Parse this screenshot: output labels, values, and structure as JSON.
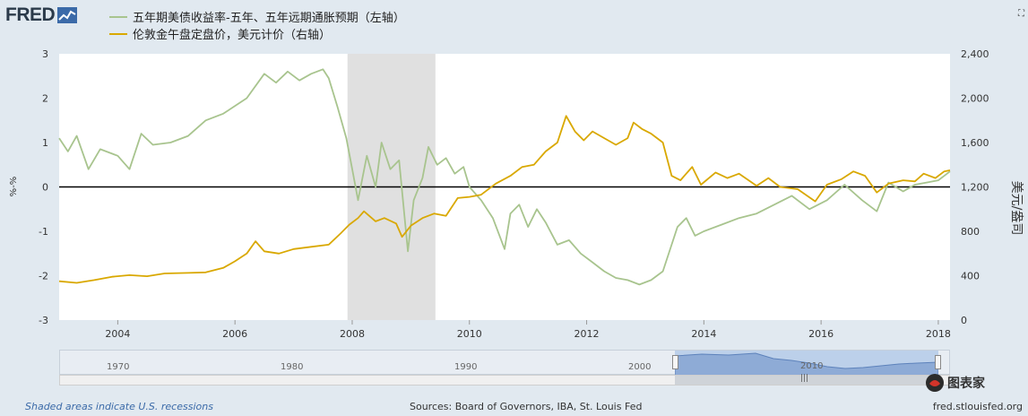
{
  "header": {
    "logo_text": "FRED",
    "legend": [
      {
        "label": "五年期美债收益率-五年、五年远期通胀预期（左轴）",
        "color": "#a8c48e"
      },
      {
        "label": "伦敦金午盘定盘价，美元计价（右轴）",
        "color": "#d9a800"
      }
    ]
  },
  "chart_data": {
    "type": "line",
    "x_ticks": [
      "2004",
      "2006",
      "2008",
      "2010",
      "2012",
      "2014",
      "2016",
      "2018"
    ],
    "x_range": [
      2003.0,
      2018.2
    ],
    "y_left": {
      "label": "%-%",
      "range": [
        -3,
        3
      ],
      "ticks": [
        "3",
        "2",
        "1",
        "0",
        "-1",
        "-2",
        "-3"
      ]
    },
    "y_right": {
      "label": "美元/盎司",
      "range": [
        0,
        2400
      ],
      "ticks": [
        "2,400",
        "2,000",
        "1,600",
        "1,200",
        "800",
        "400",
        "0"
      ]
    },
    "recession": {
      "start": 2007.92,
      "end": 2009.42,
      "color": "#e0e0e0"
    },
    "zero_line": 0,
    "series": [
      {
        "name": "五年期美债收益率-五年、五年远期通胀预期（左轴）",
        "axis": "left",
        "color": "#a8c48e",
        "points": [
          [
            2003.0,
            1.1
          ],
          [
            2003.15,
            0.8
          ],
          [
            2003.3,
            1.15
          ],
          [
            2003.5,
            0.4
          ],
          [
            2003.7,
            0.85
          ],
          [
            2004.0,
            0.7
          ],
          [
            2004.2,
            0.4
          ],
          [
            2004.4,
            1.2
          ],
          [
            2004.6,
            0.95
          ],
          [
            2004.9,
            1.0
          ],
          [
            2005.2,
            1.15
          ],
          [
            2005.5,
            1.5
          ],
          [
            2005.8,
            1.65
          ],
          [
            2006.2,
            2.0
          ],
          [
            2006.5,
            2.55
          ],
          [
            2006.7,
            2.35
          ],
          [
            2006.9,
            2.6
          ],
          [
            2007.1,
            2.4
          ],
          [
            2007.3,
            2.55
          ],
          [
            2007.5,
            2.65
          ],
          [
            2007.6,
            2.45
          ],
          [
            2007.75,
            1.8
          ],
          [
            2007.9,
            1.1
          ],
          [
            2008.0,
            0.4
          ],
          [
            2008.1,
            -0.3
          ],
          [
            2008.25,
            0.7
          ],
          [
            2008.4,
            0.0
          ],
          [
            2008.5,
            1.0
          ],
          [
            2008.65,
            0.4
          ],
          [
            2008.8,
            0.6
          ],
          [
            2008.95,
            -1.45
          ],
          [
            2009.05,
            -0.3
          ],
          [
            2009.2,
            0.2
          ],
          [
            2009.3,
            0.9
          ],
          [
            2009.45,
            0.5
          ],
          [
            2009.6,
            0.65
          ],
          [
            2009.75,
            0.3
          ],
          [
            2009.9,
            0.45
          ],
          [
            2010.0,
            0.0
          ],
          [
            2010.2,
            -0.3
          ],
          [
            2010.4,
            -0.7
          ],
          [
            2010.6,
            -1.4
          ],
          [
            2010.7,
            -0.6
          ],
          [
            2010.85,
            -0.4
          ],
          [
            2011.0,
            -0.9
          ],
          [
            2011.15,
            -0.5
          ],
          [
            2011.3,
            -0.8
          ],
          [
            2011.5,
            -1.3
          ],
          [
            2011.7,
            -1.2
          ],
          [
            2011.9,
            -1.5
          ],
          [
            2012.1,
            -1.7
          ],
          [
            2012.3,
            -1.9
          ],
          [
            2012.5,
            -2.05
          ],
          [
            2012.7,
            -2.1
          ],
          [
            2012.9,
            -2.2
          ],
          [
            2013.1,
            -2.1
          ],
          [
            2013.3,
            -1.9
          ],
          [
            2013.45,
            -1.3
          ],
          [
            2013.55,
            -0.9
          ],
          [
            2013.7,
            -0.7
          ],
          [
            2013.85,
            -1.1
          ],
          [
            2014.0,
            -1.0
          ],
          [
            2014.3,
            -0.85
          ],
          [
            2014.6,
            -0.7
          ],
          [
            2014.9,
            -0.6
          ],
          [
            2015.2,
            -0.4
          ],
          [
            2015.5,
            -0.2
          ],
          [
            2015.8,
            -0.5
          ],
          [
            2016.1,
            -0.3
          ],
          [
            2016.4,
            0.05
          ],
          [
            2016.7,
            -0.3
          ],
          [
            2016.95,
            -0.55
          ],
          [
            2017.15,
            0.1
          ],
          [
            2017.4,
            -0.1
          ],
          [
            2017.6,
            0.05
          ],
          [
            2017.8,
            0.1
          ],
          [
            2018.0,
            0.15
          ],
          [
            2018.2,
            0.35
          ]
        ]
      },
      {
        "name": "伦敦金午盘定盘价，美元计价（右轴）",
        "axis": "right",
        "color": "#d9a800",
        "points": [
          [
            2003.0,
            350
          ],
          [
            2003.3,
            335
          ],
          [
            2003.6,
            360
          ],
          [
            2003.9,
            390
          ],
          [
            2004.2,
            405
          ],
          [
            2004.5,
            395
          ],
          [
            2004.8,
            420
          ],
          [
            2005.2,
            425
          ],
          [
            2005.5,
            430
          ],
          [
            2005.8,
            470
          ],
          [
            2006.0,
            530
          ],
          [
            2006.2,
            600
          ],
          [
            2006.35,
            710
          ],
          [
            2006.5,
            620
          ],
          [
            2006.75,
            600
          ],
          [
            2007.0,
            640
          ],
          [
            2007.3,
            660
          ],
          [
            2007.6,
            680
          ],
          [
            2007.8,
            780
          ],
          [
            2007.95,
            860
          ],
          [
            2008.1,
            920
          ],
          [
            2008.2,
            980
          ],
          [
            2008.4,
            890
          ],
          [
            2008.55,
            920
          ],
          [
            2008.75,
            870
          ],
          [
            2008.85,
            750
          ],
          [
            2009.0,
            850
          ],
          [
            2009.2,
            920
          ],
          [
            2009.4,
            960
          ],
          [
            2009.6,
            940
          ],
          [
            2009.8,
            1100
          ],
          [
            2010.0,
            1110
          ],
          [
            2010.2,
            1130
          ],
          [
            2010.45,
            1230
          ],
          [
            2010.7,
            1300
          ],
          [
            2010.9,
            1380
          ],
          [
            2011.1,
            1400
          ],
          [
            2011.3,
            1520
          ],
          [
            2011.5,
            1600
          ],
          [
            2011.65,
            1840
          ],
          [
            2011.8,
            1700
          ],
          [
            2011.95,
            1620
          ],
          [
            2012.1,
            1700
          ],
          [
            2012.3,
            1640
          ],
          [
            2012.5,
            1580
          ],
          [
            2012.7,
            1640
          ],
          [
            2012.8,
            1780
          ],
          [
            2012.95,
            1720
          ],
          [
            2013.1,
            1680
          ],
          [
            2013.3,
            1600
          ],
          [
            2013.45,
            1300
          ],
          [
            2013.6,
            1260
          ],
          [
            2013.8,
            1380
          ],
          [
            2013.95,
            1220
          ],
          [
            2014.2,
            1330
          ],
          [
            2014.4,
            1280
          ],
          [
            2014.6,
            1320
          ],
          [
            2014.9,
            1210
          ],
          [
            2015.1,
            1280
          ],
          [
            2015.3,
            1200
          ],
          [
            2015.6,
            1180
          ],
          [
            2015.9,
            1070
          ],
          [
            2016.1,
            1220
          ],
          [
            2016.35,
            1270
          ],
          [
            2016.55,
            1340
          ],
          [
            2016.75,
            1300
          ],
          [
            2016.95,
            1150
          ],
          [
            2017.15,
            1230
          ],
          [
            2017.4,
            1260
          ],
          [
            2017.6,
            1250
          ],
          [
            2017.75,
            1320
          ],
          [
            2017.95,
            1280
          ],
          [
            2018.1,
            1340
          ],
          [
            2018.2,
            1350
          ]
        ]
      }
    ]
  },
  "navigator": {
    "ticks": [
      "1970",
      "1980",
      "1990",
      "2000",
      "2010"
    ]
  },
  "footer": {
    "recession_note": "Shaded areas indicate U.S. recessions",
    "sources": "Sources: Board of Governors, IBA, St. Louis Fed",
    "site": "fred.stlouisfed.org"
  },
  "watermark": {
    "text": "图表家"
  }
}
